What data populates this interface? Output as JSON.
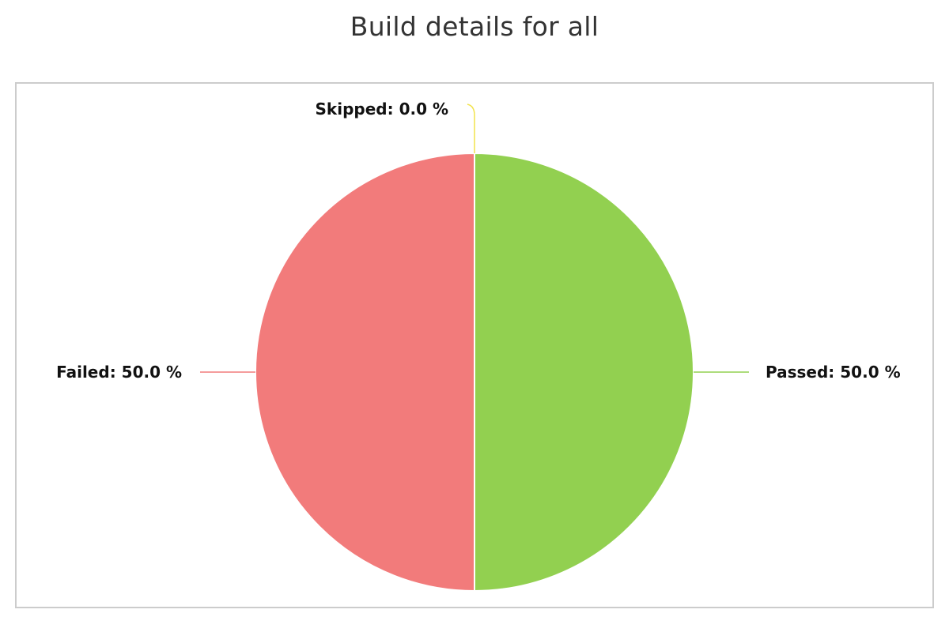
{
  "chart_data": {
    "type": "pie",
    "title": "Build details for all",
    "slices": [
      {
        "name": "Passed",
        "value": 50.0,
        "label": "Passed: 50.0 %",
        "color": "#92d050"
      },
      {
        "name": "Failed",
        "value": 50.0,
        "label": "Failed: 50.0 %",
        "color": "#f27b7b"
      },
      {
        "name": "Skipped",
        "value": 0.0,
        "label": "Skipped: 0.0 %",
        "color": "#f2e34c"
      }
    ]
  }
}
